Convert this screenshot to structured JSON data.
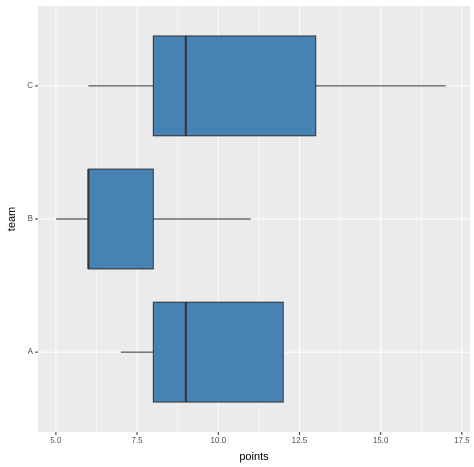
{
  "chart_data": {
    "type": "boxplot",
    "x_label": "points",
    "y_label": "team",
    "categories": [
      "A",
      "B",
      "C"
    ],
    "min": [
      7,
      5,
      6
    ],
    "q1": [
      8,
      6,
      8
    ],
    "median": [
      9,
      6,
      9
    ],
    "q3": [
      12,
      8,
      13
    ],
    "max": [
      12,
      11,
      17
    ],
    "color": "#4682b4",
    "xlim": [
      4.45,
      17.75
    ],
    "xticks": [
      {
        "value": 5,
        "label": "5.0"
      },
      {
        "value": 7.5,
        "label": "7.5"
      },
      {
        "value": 10,
        "label": "10.0"
      },
      {
        "value": 12.5,
        "label": "12.5"
      },
      {
        "value": 15,
        "label": "15.0"
      },
      {
        "value": 17.5,
        "label": "17.5"
      }
    ],
    "grid": true
  }
}
